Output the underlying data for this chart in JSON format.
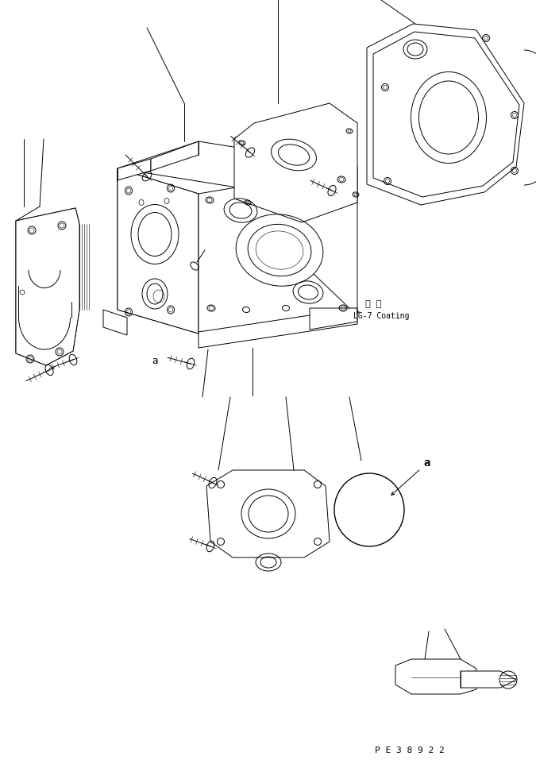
{
  "bg_color": "#ffffff",
  "line_color": "#000000",
  "fig_width": 6.75,
  "fig_height": 9.57,
  "dpi": 100,
  "annotation_coating_jp": "塗 布",
  "annotation_coating_en": "LG-7 Coating",
  "label_a1": "a",
  "label_a2": "a",
  "watermark": "P E 3 8 9 2 2"
}
